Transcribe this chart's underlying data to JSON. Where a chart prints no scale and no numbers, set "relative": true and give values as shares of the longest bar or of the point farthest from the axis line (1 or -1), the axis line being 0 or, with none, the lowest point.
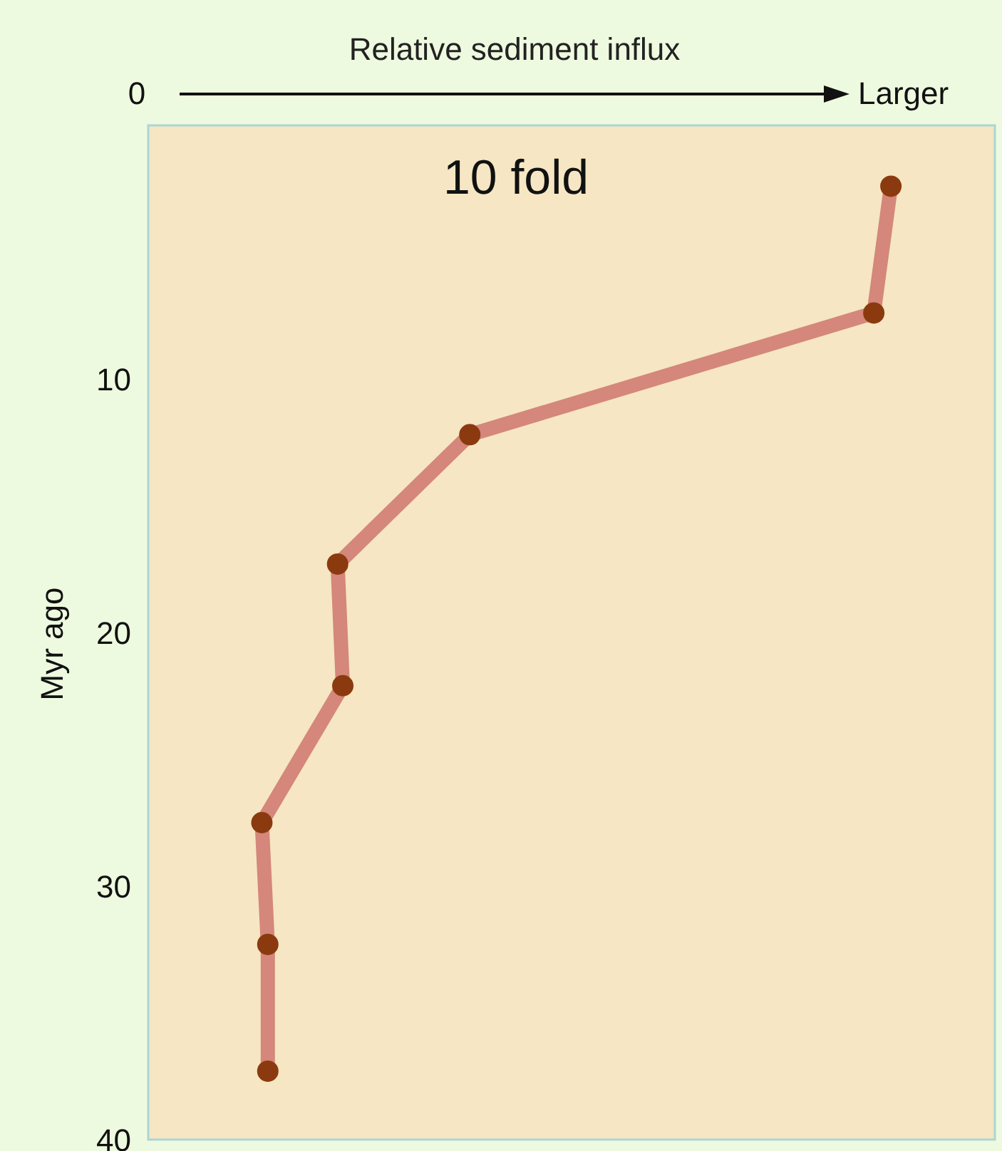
{
  "chart_data": {
    "type": "line",
    "orientation": "horizontal",
    "xlabel": "Relative sediment influx",
    "ylabel": "Myr ago",
    "relative": true,
    "x": [
      2.4,
      7.4,
      12.2,
      17.3,
      22.1,
      27.5,
      32.3,
      37.3
    ],
    "series": [
      {
        "color": "#d4877a",
        "values": [
          1,
          0.977,
          0.433,
          0.255,
          0.262,
          0.153,
          0.161,
          0.161
        ]
      }
    ],
    "ylim": [
      40,
      0
    ],
    "yticks": [
      10,
      20,
      30,
      40
    ],
    "marker": "circle",
    "line_style": "solid",
    "annotations": [
      "10 fold",
      "0",
      "Larger"
    ]
  }
}
